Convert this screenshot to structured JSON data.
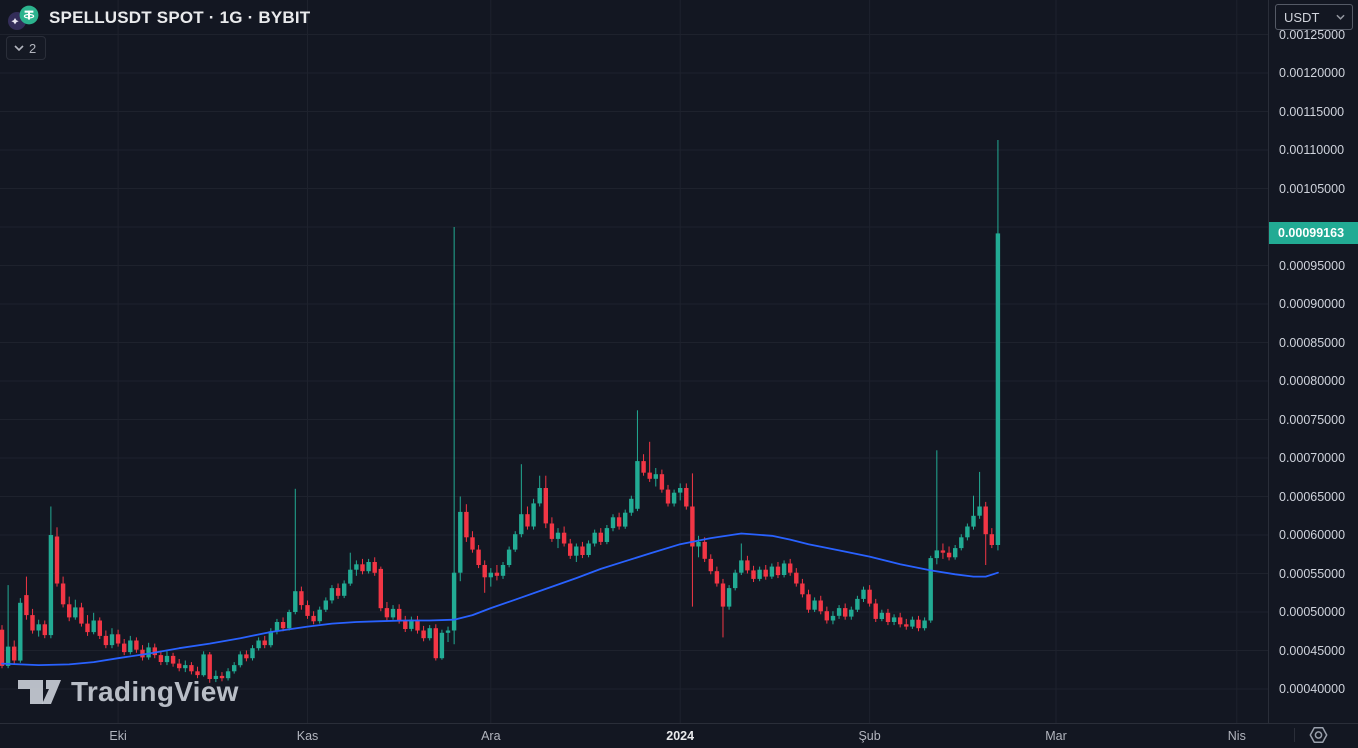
{
  "colors": {
    "background": "#131722",
    "grid": "#1e222d",
    "up": "#22ab94",
    "down": "#f23645",
    "ma_blue": "#2962ff",
    "axis_text": "#cfd3dc",
    "time_text": "#b2b5be",
    "title_text": "#e9eaec",
    "tag_text": "#ffffff"
  },
  "header": {
    "symbol_title": "SPELLUSDT SPOT · 1G · BYBIT",
    "legend_toggle_count": "2"
  },
  "watermark": {
    "text": "TradingView"
  },
  "price_axis": {
    "currency_selector": "USDT",
    "current_price_label": "0.00099163",
    "labels": [
      {
        "text": "0.00125000",
        "value": 125
      },
      {
        "text": "0.00120000",
        "value": 120
      },
      {
        "text": "0.00115000",
        "value": 115
      },
      {
        "text": "0.00110000",
        "value": 110
      },
      {
        "text": "0.00105000",
        "value": 105
      },
      {
        "text": "0.00100000",
        "value": 100
      },
      {
        "text": "0.00095000",
        "value": 95
      },
      {
        "text": "0.00090000",
        "value": 90
      },
      {
        "text": "0.00085000",
        "value": 85
      },
      {
        "text": "0.00080000",
        "value": 80
      },
      {
        "text": "0.00075000",
        "value": 75
      },
      {
        "text": "0.00070000",
        "value": 70
      },
      {
        "text": "0.00065000",
        "value": 65
      },
      {
        "text": "0.00060000",
        "value": 60
      },
      {
        "text": "0.00055000",
        "value": 55
      },
      {
        "text": "0.00050000",
        "value": 50
      },
      {
        "text": "0.00045000",
        "value": 45
      },
      {
        "text": "0.00040000",
        "value": 40
      }
    ]
  },
  "chart_data": {
    "type": "candlestick",
    "symbol": "SPELLUSDT",
    "market": "SPOT",
    "interval": "1G",
    "exchange": "BYBIT",
    "current_price": 0.00099163,
    "price_unit": 1e-05,
    "y_axis_range": [
      0.000365,
      0.0012947
    ],
    "grid": true,
    "months": [
      {
        "label": "Eki",
        "i": 19
      },
      {
        "label": "Kas",
        "i": 50
      },
      {
        "label": "Ara",
        "i": 80
      },
      {
        "label": "2024",
        "i": 111,
        "bold": true
      },
      {
        "label": "Şub",
        "i": 142
      },
      {
        "label": "Mar",
        "i": 172.5
      },
      {
        "label": "Nis",
        "i": 202.1
      }
    ],
    "candles": [
      [
        47.7,
        48.3,
        42.7,
        43.0
      ],
      [
        43.0,
        53.5,
        42.7,
        45.5
      ],
      [
        45.5,
        46.3,
        43.3,
        43.7
      ],
      [
        43.7,
        51.8,
        43.4,
        51.2
      ],
      [
        52.2,
        54.6,
        49.0,
        49.6
      ],
      [
        49.6,
        50.4,
        47.2,
        47.6
      ],
      [
        47.6,
        49.0,
        46.8,
        48.4
      ],
      [
        48.4,
        48.9,
        46.6,
        47.0
      ],
      [
        47.0,
        63.7,
        46.6,
        60.0
      ],
      [
        59.8,
        61.0,
        53.3,
        53.7
      ],
      [
        53.7,
        54.6,
        50.6,
        51.0
      ],
      [
        51.0,
        52.0,
        48.8,
        49.3
      ],
      [
        49.3,
        51.6,
        49.0,
        50.6
      ],
      [
        50.6,
        51.2,
        48.1,
        48.5
      ],
      [
        48.5,
        49.6,
        46.9,
        47.4
      ],
      [
        47.4,
        49.9,
        47.1,
        48.9
      ],
      [
        48.9,
        49.3,
        46.5,
        46.9
      ],
      [
        46.9,
        47.6,
        45.3,
        45.7
      ],
      [
        45.7,
        47.9,
        45.3,
        47.1
      ],
      [
        47.1,
        47.7,
        45.5,
        45.9
      ],
      [
        45.9,
        46.5,
        44.4,
        44.8
      ],
      [
        44.8,
        46.9,
        44.5,
        46.3
      ],
      [
        46.3,
        46.7,
        44.7,
        45.1
      ],
      [
        45.1,
        45.7,
        43.7,
        44.1
      ],
      [
        44.1,
        46.0,
        43.8,
        45.4
      ],
      [
        45.4,
        45.9,
        44.0,
        44.4
      ],
      [
        44.4,
        45.0,
        43.1,
        43.5
      ],
      [
        43.5,
        44.9,
        43.1,
        44.3
      ],
      [
        44.3,
        44.7,
        42.9,
        43.3
      ],
      [
        43.3,
        43.9,
        42.3,
        42.7
      ],
      [
        42.7,
        43.7,
        42.2,
        43.1
      ],
      [
        43.1,
        43.5,
        41.9,
        42.3
      ],
      [
        42.3,
        42.9,
        41.4,
        41.8
      ],
      [
        41.8,
        44.9,
        41.6,
        44.5
      ],
      [
        44.5,
        44.8,
        40.8,
        41.3
      ],
      [
        41.3,
        42.4,
        40.9,
        41.7
      ],
      [
        41.7,
        42.2,
        41.0,
        41.4
      ],
      [
        41.4,
        42.7,
        41.1,
        42.3
      ],
      [
        42.3,
        43.5,
        42.0,
        43.1
      ],
      [
        43.1,
        44.9,
        42.8,
        44.5
      ],
      [
        44.5,
        45.0,
        43.6,
        44.0
      ],
      [
        44.0,
        45.7,
        43.7,
        45.3
      ],
      [
        45.3,
        46.7,
        45.0,
        46.3
      ],
      [
        46.3,
        46.9,
        45.3,
        45.7
      ],
      [
        45.7,
        47.9,
        45.4,
        47.5
      ],
      [
        47.5,
        49.1,
        47.1,
        48.7
      ],
      [
        48.7,
        49.3,
        47.5,
        47.9
      ],
      [
        47.9,
        50.3,
        47.6,
        50.0
      ],
      [
        50.0,
        66.0,
        49.7,
        52.7
      ],
      [
        52.7,
        53.3,
        50.3,
        50.9
      ],
      [
        50.9,
        51.5,
        49.1,
        49.5
      ],
      [
        49.5,
        50.1,
        48.4,
        48.8
      ],
      [
        48.8,
        50.7,
        48.5,
        50.3
      ],
      [
        50.3,
        51.9,
        50.0,
        51.5
      ],
      [
        51.5,
        53.5,
        51.1,
        53.1
      ],
      [
        53.1,
        53.7,
        51.7,
        52.1
      ],
      [
        52.1,
        54.1,
        51.8,
        53.7
      ],
      [
        53.7,
        57.7,
        53.4,
        55.5
      ],
      [
        55.5,
        56.7,
        54.7,
        56.2
      ],
      [
        56.2,
        56.9,
        54.9,
        55.3
      ],
      [
        55.3,
        56.9,
        55.0,
        56.5
      ],
      [
        56.5,
        57.1,
        54.7,
        55.1
      ],
      [
        55.6,
        55.9,
        50.1,
        50.5
      ],
      [
        50.5,
        51.3,
        48.9,
        49.3
      ],
      [
        49.3,
        50.9,
        49.0,
        50.4
      ],
      [
        50.4,
        51.0,
        48.5,
        48.9
      ],
      [
        48.9,
        49.5,
        47.4,
        47.8
      ],
      [
        47.8,
        49.4,
        47.5,
        49.0
      ],
      [
        49.0,
        49.5,
        47.2,
        47.6
      ],
      [
        47.6,
        48.2,
        46.2,
        46.6
      ],
      [
        46.6,
        48.3,
        46.3,
        47.9
      ],
      [
        47.9,
        48.4,
        43.7,
        44.0
      ],
      [
        44.0,
        47.7,
        43.8,
        47.3
      ],
      [
        47.3,
        48.1,
        46.1,
        47.6
      ],
      [
        47.6,
        100.0,
        45.8,
        55.1
      ],
      [
        55.1,
        65.0,
        54.0,
        63.0
      ],
      [
        63.0,
        64.0,
        59.1,
        59.7
      ],
      [
        59.7,
        60.5,
        57.7,
        58.1
      ],
      [
        58.1,
        58.7,
        55.7,
        56.1
      ],
      [
        56.1,
        56.7,
        52.5,
        54.5
      ],
      [
        54.5,
        55.7,
        53.3,
        55.1
      ],
      [
        55.1,
        56.1,
        54.1,
        54.7
      ],
      [
        54.7,
        56.5,
        54.3,
        56.1
      ],
      [
        56.1,
        58.5,
        55.8,
        58.1
      ],
      [
        58.1,
        60.5,
        57.8,
        60.1
      ],
      [
        60.1,
        69.2,
        59.7,
        62.7
      ],
      [
        62.7,
        63.7,
        60.7,
        61.1
      ],
      [
        61.1,
        64.7,
        60.7,
        64.1
      ],
      [
        64.1,
        67.7,
        63.7,
        66.1
      ],
      [
        66.1,
        67.7,
        60.9,
        61.5
      ],
      [
        61.5,
        62.3,
        59.1,
        59.5
      ],
      [
        59.5,
        60.9,
        58.3,
        60.3
      ],
      [
        60.3,
        61.1,
        58.5,
        58.9
      ],
      [
        58.9,
        59.5,
        56.9,
        57.3
      ],
      [
        57.3,
        58.9,
        56.5,
        58.5
      ],
      [
        58.5,
        59.1,
        57.0,
        57.4
      ],
      [
        57.4,
        59.3,
        57.1,
        58.9
      ],
      [
        58.9,
        60.7,
        58.5,
        60.3
      ],
      [
        60.3,
        60.9,
        58.7,
        59.1
      ],
      [
        59.1,
        61.3,
        58.8,
        60.9
      ],
      [
        60.9,
        62.7,
        60.5,
        62.3
      ],
      [
        62.3,
        62.9,
        60.7,
        61.1
      ],
      [
        61.1,
        63.3,
        60.8,
        62.9
      ],
      [
        62.9,
        65.1,
        62.5,
        64.7
      ],
      [
        63.4,
        76.2,
        63.1,
        69.6
      ],
      [
        69.6,
        70.5,
        67.7,
        68.1
      ],
      [
        68.1,
        72.1,
        66.9,
        67.3
      ],
      [
        67.3,
        68.7,
        66.3,
        67.9
      ],
      [
        67.9,
        68.5,
        65.5,
        65.9
      ],
      [
        65.9,
        66.5,
        63.7,
        64.1
      ],
      [
        64.1,
        65.9,
        63.7,
        65.5
      ],
      [
        65.5,
        66.7,
        64.5,
        66.1
      ],
      [
        66.1,
        66.7,
        63.3,
        63.7
      ],
      [
        63.7,
        68.0,
        50.7,
        58.5
      ],
      [
        58.5,
        59.9,
        57.1,
        59.1
      ],
      [
        59.1,
        59.7,
        56.5,
        56.9
      ],
      [
        56.9,
        57.5,
        54.9,
        55.3
      ],
      [
        55.3,
        55.9,
        53.3,
        53.7
      ],
      [
        53.7,
        54.3,
        46.7,
        50.7
      ],
      [
        50.7,
        53.5,
        50.3,
        53.1
      ],
      [
        53.1,
        55.5,
        52.8,
        55.1
      ],
      [
        55.1,
        58.9,
        54.8,
        56.7
      ],
      [
        56.7,
        57.3,
        55.0,
        55.4
      ],
      [
        55.4,
        56.0,
        53.9,
        54.3
      ],
      [
        54.3,
        55.9,
        54.0,
        55.5
      ],
      [
        55.5,
        56.1,
        54.2,
        54.6
      ],
      [
        54.6,
        56.3,
        54.3,
        55.9
      ],
      [
        55.9,
        56.5,
        54.4,
        54.8
      ],
      [
        54.8,
        56.7,
        54.5,
        56.3
      ],
      [
        56.3,
        56.9,
        54.7,
        55.1
      ],
      [
        55.1,
        55.7,
        53.3,
        53.7
      ],
      [
        53.7,
        54.3,
        51.9,
        52.3
      ],
      [
        52.3,
        52.9,
        49.9,
        50.3
      ],
      [
        50.3,
        51.9,
        50.0,
        51.5
      ],
      [
        51.5,
        52.1,
        49.7,
        50.1
      ],
      [
        50.1,
        50.7,
        48.5,
        48.9
      ],
      [
        48.9,
        50.1,
        48.4,
        49.5
      ],
      [
        49.5,
        50.9,
        49.1,
        50.5
      ],
      [
        50.5,
        51.1,
        49.0,
        49.4
      ],
      [
        49.4,
        50.7,
        49.0,
        50.3
      ],
      [
        50.3,
        52.1,
        50.0,
        51.7
      ],
      [
        51.7,
        53.3,
        51.3,
        52.9
      ],
      [
        52.9,
        53.5,
        50.7,
        51.1
      ],
      [
        51.1,
        51.7,
        48.7,
        49.1
      ],
      [
        49.1,
        50.3,
        48.8,
        49.9
      ],
      [
        49.9,
        50.4,
        48.3,
        48.7
      ],
      [
        48.7,
        49.7,
        48.3,
        49.3
      ],
      [
        49.3,
        49.9,
        48.0,
        48.4
      ],
      [
        48.4,
        49.1,
        47.7,
        48.1
      ],
      [
        48.1,
        49.4,
        47.8,
        49.0
      ],
      [
        49.0,
        49.5,
        47.5,
        47.9
      ],
      [
        47.9,
        49.3,
        47.6,
        48.9
      ],
      [
        48.9,
        57.3,
        48.6,
        57.0
      ],
      [
        57.0,
        71.0,
        56.2,
        58.0
      ],
      [
        58.0,
        58.9,
        56.9,
        57.7
      ],
      [
        57.7,
        58.5,
        56.7,
        57.1
      ],
      [
        57.1,
        58.7,
        56.8,
        58.3
      ],
      [
        58.3,
        60.1,
        58.0,
        59.7
      ],
      [
        59.7,
        61.5,
        59.3,
        61.1
      ],
      [
        61.1,
        65.1,
        60.7,
        62.5
      ],
      [
        62.5,
        68.2,
        62.1,
        63.7
      ],
      [
        63.7,
        64.3,
        56.1,
        60.1
      ],
      [
        60.1,
        60.9,
        58.3,
        58.7
      ],
      [
        58.7,
        111.3,
        58.0,
        99.163
      ]
    ],
    "ma_line": {
      "name": "MA",
      "color": "#2962ff",
      "points": [
        [
          0,
          43.3
        ],
        [
          6,
          43.1
        ],
        [
          11,
          43.2
        ],
        [
          15,
          43.5
        ],
        [
          19,
          44.0
        ],
        [
          24,
          44.6
        ],
        [
          29,
          45.3
        ],
        [
          34,
          45.9
        ],
        [
          39,
          46.6
        ],
        [
          44,
          47.4
        ],
        [
          50,
          48.1
        ],
        [
          54,
          48.5
        ],
        [
          58,
          48.7
        ],
        [
          62,
          48.8
        ],
        [
          66,
          48.9
        ],
        [
          70,
          48.9
        ],
        [
          74,
          49.0
        ],
        [
          77,
          49.6
        ],
        [
          80,
          50.5
        ],
        [
          84,
          51.6
        ],
        [
          89,
          53.0
        ],
        [
          94,
          54.4
        ],
        [
          98,
          55.6
        ],
        [
          102,
          56.6
        ],
        [
          106,
          57.6
        ],
        [
          111,
          58.8
        ],
        [
          116,
          59.6
        ],
        [
          121,
          60.2
        ],
        [
          126,
          59.9
        ],
        [
          129,
          59.4
        ],
        [
          132,
          58.8
        ],
        [
          137,
          58.0
        ],
        [
          142,
          57.2
        ],
        [
          147,
          56.2
        ],
        [
          152,
          55.4
        ],
        [
          156,
          54.9
        ],
        [
          159,
          54.6
        ],
        [
          161,
          54.6
        ],
        [
          163,
          55.1
        ]
      ]
    }
  }
}
